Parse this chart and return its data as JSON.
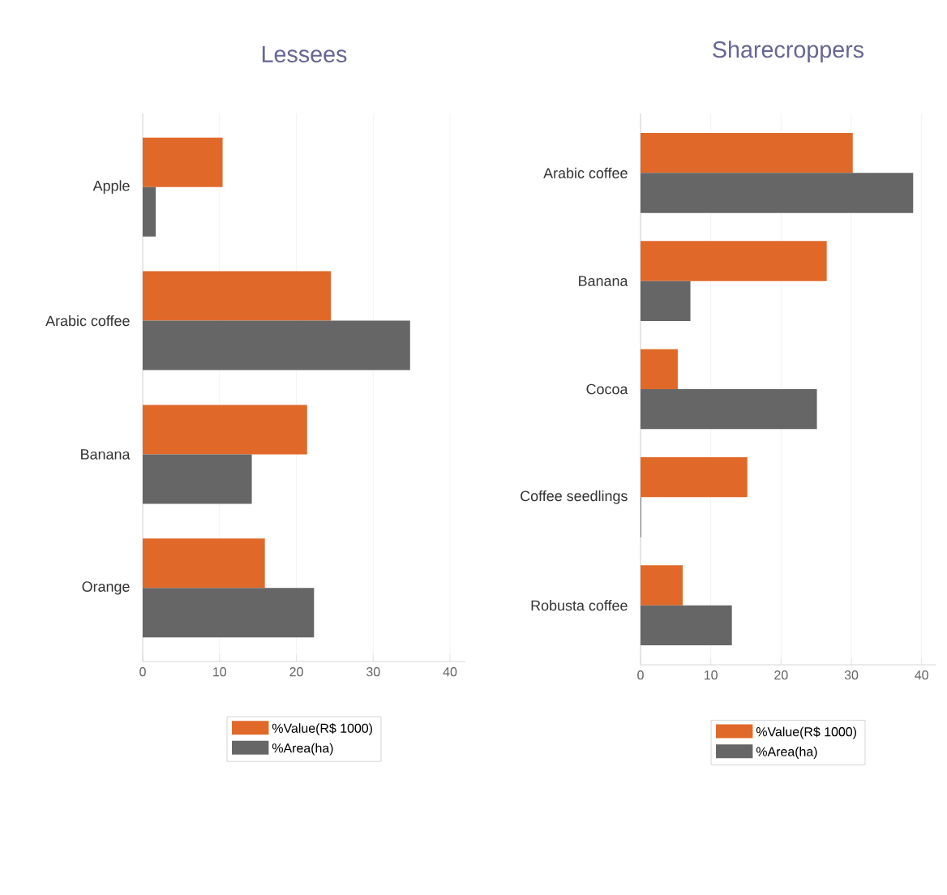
{
  "chart_data": [
    {
      "type": "bar",
      "orientation": "horizontal",
      "title": "Lessees",
      "categories": [
        "Apple",
        "Arabic coffee",
        "Banana",
        "Orange"
      ],
      "series": [
        {
          "name": "%Value(R$ 1000)",
          "color": "#e0692a",
          "values": [
            10.4,
            24.5,
            21.4,
            15.9
          ]
        },
        {
          "name": "%Area(ha)",
          "color": "#666666",
          "values": [
            1.7,
            34.8,
            14.2,
            22.3
          ]
        }
      ],
      "xlim": [
        0,
        42
      ],
      "xticks": [
        0,
        10,
        20,
        30,
        40
      ],
      "grid": "x",
      "legend": "bottom"
    },
    {
      "type": "bar",
      "orientation": "horizontal",
      "title": "Sharecroppers",
      "categories": [
        "Arabic coffee",
        "Banana",
        "Cocoa",
        "Coffee seedlings",
        "Robusta coffee"
      ],
      "series": [
        {
          "name": "%Value(R$ 1000)",
          "color": "#e0692a",
          "values": [
            30.2,
            26.5,
            5.3,
            15.2,
            6.0
          ]
        },
        {
          "name": "%Area(ha)",
          "color": "#666666",
          "values": [
            38.8,
            7.1,
            25.1,
            0.1,
            13.0
          ]
        }
      ],
      "xlim": [
        0,
        42
      ],
      "xticks": [
        0,
        10,
        20,
        30,
        40
      ],
      "grid": "x",
      "legend": "bottom"
    }
  ]
}
